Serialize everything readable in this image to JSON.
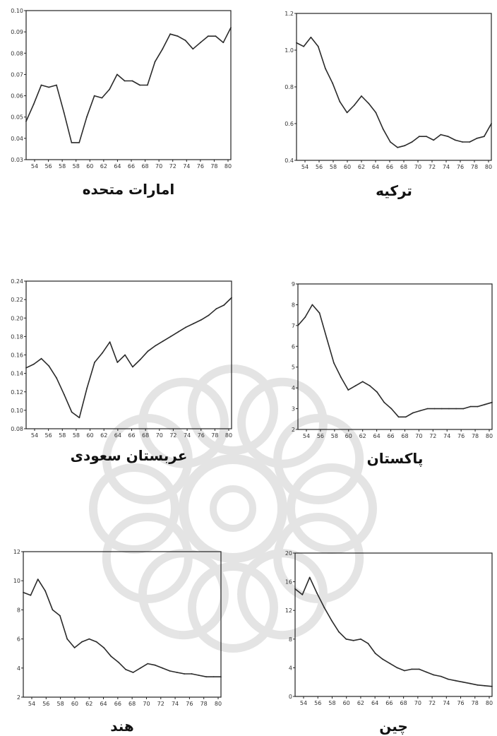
{
  "watermark": {
    "icon": "rosette-icon",
    "color": "#8a8a8a"
  },
  "chart_data": [
    {
      "type": "line",
      "title": "امارات متحده",
      "x": [
        53,
        54,
        55,
        56,
        57,
        58,
        59,
        60,
        61,
        62,
        63,
        64,
        65,
        66,
        67,
        68,
        69,
        70,
        71,
        72,
        73,
        74,
        75,
        76,
        77,
        78,
        79,
        80
      ],
      "series": [
        {
          "values": [
            0.048,
            0.056,
            0.065,
            0.064,
            0.065,
            0.052,
            0.038,
            0.038,
            0.05,
            0.06,
            0.059,
            0.063,
            0.07,
            0.067,
            0.067,
            0.065,
            0.065,
            0.076,
            0.082,
            0.089,
            0.088,
            0.086,
            0.082,
            0.085,
            0.088,
            0.088,
            0.085,
            0.092
          ]
        }
      ],
      "xticks": [
        "54",
        "56",
        "58",
        "58",
        "60",
        "62",
        "64",
        "66",
        "68",
        "70",
        "72",
        "74",
        "76",
        "78",
        "80"
      ],
      "yticks": [
        "0.03",
        "0.04",
        "0.05",
        "0.06",
        "0.07",
        "0.08",
        "0.09",
        "0.10"
      ],
      "ylim": [
        0.03,
        0.1
      ]
    },
    {
      "type": "line",
      "title": "ترکیه",
      "x": [
        53,
        54,
        55,
        56,
        57,
        58,
        59,
        60,
        61,
        62,
        63,
        64,
        65,
        66,
        67,
        68,
        69,
        70,
        71,
        72,
        73,
        74,
        75,
        76,
        77,
        78,
        79,
        80
      ],
      "series": [
        {
          "values": [
            1.04,
            1.02,
            1.07,
            1.02,
            0.9,
            0.82,
            0.72,
            0.66,
            0.7,
            0.75,
            0.71,
            0.66,
            0.57,
            0.5,
            0.47,
            0.48,
            0.5,
            0.53,
            0.53,
            0.51,
            0.54,
            0.53,
            0.51,
            0.5,
            0.5,
            0.52,
            0.53,
            0.6
          ]
        }
      ],
      "xticks": [
        "54",
        "56",
        "58",
        "60",
        "62",
        "64",
        "66",
        "68",
        "70",
        "72",
        "74",
        "76",
        "78",
        "80"
      ],
      "yticks": [
        "0.4",
        "0.6",
        "0.8",
        "1.0",
        "1.2"
      ],
      "ylim": [
        0.4,
        1.2
      ]
    },
    {
      "type": "line",
      "title": "عربستان سعودی",
      "x": [
        53,
        54,
        55,
        56,
        57,
        58,
        59,
        60,
        61,
        62,
        63,
        64,
        65,
        66,
        67,
        68,
        69,
        70,
        71,
        72,
        73,
        74,
        75,
        76,
        77,
        78,
        79,
        80
      ],
      "series": [
        {
          "values": [
            0.146,
            0.15,
            0.156,
            0.148,
            0.135,
            0.117,
            0.098,
            0.092,
            0.124,
            0.152,
            0.162,
            0.174,
            0.152,
            0.16,
            0.147,
            0.155,
            0.164,
            0.17,
            0.175,
            0.18,
            0.185,
            0.19,
            0.194,
            0.198,
            0.203,
            0.21,
            0.214,
            0.222
          ]
        }
      ],
      "xticks": [
        "54",
        "56",
        "58",
        "58",
        "60",
        "62",
        "64",
        "66",
        "68",
        "70",
        "72",
        "74",
        "76",
        "78",
        "80"
      ],
      "yticks": [
        "0.08",
        "0.10",
        "0.12",
        "0.14",
        "0.16",
        "0.18",
        "0.20",
        "0.22",
        "0.24"
      ],
      "ylim": [
        0.08,
        0.24
      ]
    },
    {
      "type": "line",
      "title": "پاکستان",
      "x": [
        53,
        54,
        55,
        56,
        57,
        58,
        59,
        60,
        61,
        62,
        63,
        64,
        65,
        66,
        67,
        68,
        69,
        70,
        71,
        72,
        73,
        74,
        75,
        76,
        77,
        78,
        79,
        80
      ],
      "series": [
        {
          "values": [
            7.0,
            7.4,
            8.0,
            7.6,
            6.4,
            5.2,
            4.5,
            3.9,
            4.1,
            4.3,
            4.1,
            3.8,
            3.3,
            3.0,
            2.6,
            2.6,
            2.8,
            2.9,
            3.0,
            3.0,
            3.0,
            3.0,
            3.0,
            3.0,
            3.1,
            3.1,
            3.2,
            3.3
          ]
        }
      ],
      "xticks": [
        "54",
        "56",
        "58",
        "60",
        "62",
        "64",
        "66",
        "68",
        "70",
        "72",
        "74",
        "76",
        "78",
        "80"
      ],
      "yticks": [
        "2",
        "3",
        "4",
        "5",
        "6",
        "7",
        "8",
        "9"
      ],
      "ylim": [
        2,
        9
      ]
    },
    {
      "type": "line",
      "title": "هند",
      "x": [
        53,
        54,
        55,
        56,
        57,
        58,
        59,
        60,
        61,
        62,
        63,
        64,
        65,
        66,
        67,
        68,
        69,
        70,
        71,
        72,
        73,
        74,
        75,
        76,
        77,
        78,
        79,
        80
      ],
      "series": [
        {
          "values": [
            9.2,
            9.0,
            10.1,
            9.3,
            8.0,
            7.6,
            6.0,
            5.4,
            5.8,
            6.0,
            5.8,
            5.4,
            4.8,
            4.4,
            3.9,
            3.7,
            4.0,
            4.3,
            4.2,
            4.0,
            3.8,
            3.7,
            3.6,
            3.6,
            3.5,
            3.4,
            3.4,
            3.4
          ]
        }
      ],
      "xticks": [
        "54",
        "56",
        "58",
        "60",
        "62",
        "64",
        "66",
        "68",
        "70",
        "72",
        "74",
        "76",
        "78",
        "80"
      ],
      "yticks": [
        "2",
        "4",
        "6",
        "8",
        "10",
        "12"
      ],
      "ylim": [
        2,
        12
      ]
    },
    {
      "type": "line",
      "title": "چین",
      "x": [
        53,
        54,
        55,
        56,
        57,
        58,
        59,
        60,
        61,
        62,
        63,
        64,
        65,
        66,
        67,
        68,
        69,
        70,
        71,
        72,
        73,
        74,
        75,
        76,
        77,
        78,
        79,
        80
      ],
      "series": [
        {
          "values": [
            15.0,
            14.2,
            16.6,
            14.4,
            12.4,
            10.6,
            9.0,
            8.0,
            7.8,
            8.0,
            7.4,
            6.0,
            5.2,
            4.6,
            4.0,
            3.6,
            3.8,
            3.8,
            3.4,
            3.0,
            2.8,
            2.4,
            2.2,
            2.0,
            1.8,
            1.6,
            1.5,
            1.4
          ]
        }
      ],
      "xticks": [
        "54",
        "56",
        "58",
        "60",
        "62",
        "64",
        "66",
        "68",
        "70",
        "72",
        "74",
        "76",
        "78",
        "80"
      ],
      "yticks": [
        "0",
        "4",
        "8",
        "12",
        "16",
        "20"
      ],
      "ylim": [
        0,
        20
      ]
    }
  ]
}
